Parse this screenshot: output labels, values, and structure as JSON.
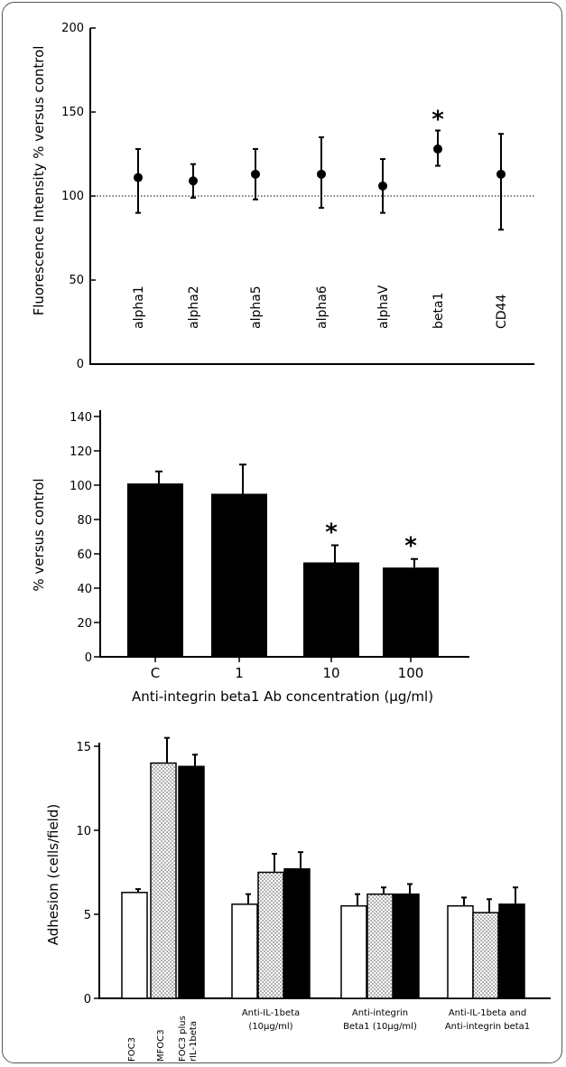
{
  "chart_data": [
    {
      "type": "scatter",
      "ylabel": "Fluorescence Intensity  % versus control",
      "ylim": [
        0,
        200
      ],
      "yticks": [
        0,
        50,
        100,
        150,
        200
      ],
      "reference_line": 100,
      "categories": [
        "alpha1",
        "alpha2",
        "alpha5",
        "alpha6",
        "alphaV",
        "beta1",
        "CD44"
      ],
      "values": [
        111,
        109,
        113,
        113,
        106,
        128,
        113
      ],
      "error_high": [
        128,
        119,
        128,
        135,
        122,
        139,
        137
      ],
      "error_low": [
        90,
        99,
        98,
        93,
        90,
        118,
        80
      ],
      "annotations": [
        {
          "category": "beta1",
          "text": "*"
        }
      ]
    },
    {
      "type": "bar",
      "ylabel": "% versus control",
      "xlabel": "Anti-integrin beta1 Ab  concentration (µg/ml)",
      "ylim": [
        0,
        140
      ],
      "yticks": [
        0,
        20,
        40,
        60,
        80,
        100,
        120,
        140
      ],
      "categories": [
        "C",
        "1",
        "10",
        "100"
      ],
      "values": [
        101,
        95,
        55,
        52
      ],
      "error_high": [
        108,
        112,
        65,
        57
      ],
      "annotations": [
        {
          "category": "10",
          "text": "*"
        },
        {
          "category": "100",
          "text": "*"
        }
      ]
    },
    {
      "type": "bar",
      "ylabel": "Adhesion (cells/field)",
      "ylim": [
        0,
        15
      ],
      "yticks": [
        0,
        5,
        10,
        15
      ],
      "groups": [
        {
          "label": [
            "FOC3"
          ],
          "bars": [
            {
              "value": 6.3,
              "err": 6.5,
              "fill": "white"
            }
          ]
        },
        {
          "label": [
            "MFOC3"
          ],
          "bars": [
            {
              "value": 14.0,
              "err": 15.5,
              "fill": "dots"
            }
          ]
        },
        {
          "label": [
            "FOC3 plus",
            "rIL-1beta"
          ],
          "bars": [
            {
              "value": 13.8,
              "err": 14.5,
              "fill": "black"
            }
          ]
        },
        {
          "label": [
            "Anti-IL-1beta",
            "(10µg/ml)"
          ],
          "bars": [
            {
              "value": 5.6,
              "err": 6.2,
              "fill": "white"
            },
            {
              "value": 7.5,
              "err": 8.6,
              "fill": "dots"
            },
            {
              "value": 7.7,
              "err": 8.7,
              "fill": "black"
            }
          ]
        },
        {
          "label": [
            "Anti-integrin",
            "Beta1 (10µg/ml)"
          ],
          "bars": [
            {
              "value": 5.5,
              "err": 6.2,
              "fill": "white"
            },
            {
              "value": 6.2,
              "err": 6.6,
              "fill": "dots"
            },
            {
              "value": 6.2,
              "err": 6.8,
              "fill": "black"
            }
          ]
        },
        {
          "label": [
            "Anti-IL-1beta and",
            "Anti-integrin beta1"
          ],
          "bars": [
            {
              "value": 5.5,
              "err": 6.0,
              "fill": "white"
            },
            {
              "value": 5.1,
              "err": 5.9,
              "fill": "dots"
            },
            {
              "value": 5.6,
              "err": 6.6,
              "fill": "black"
            }
          ]
        }
      ]
    }
  ]
}
